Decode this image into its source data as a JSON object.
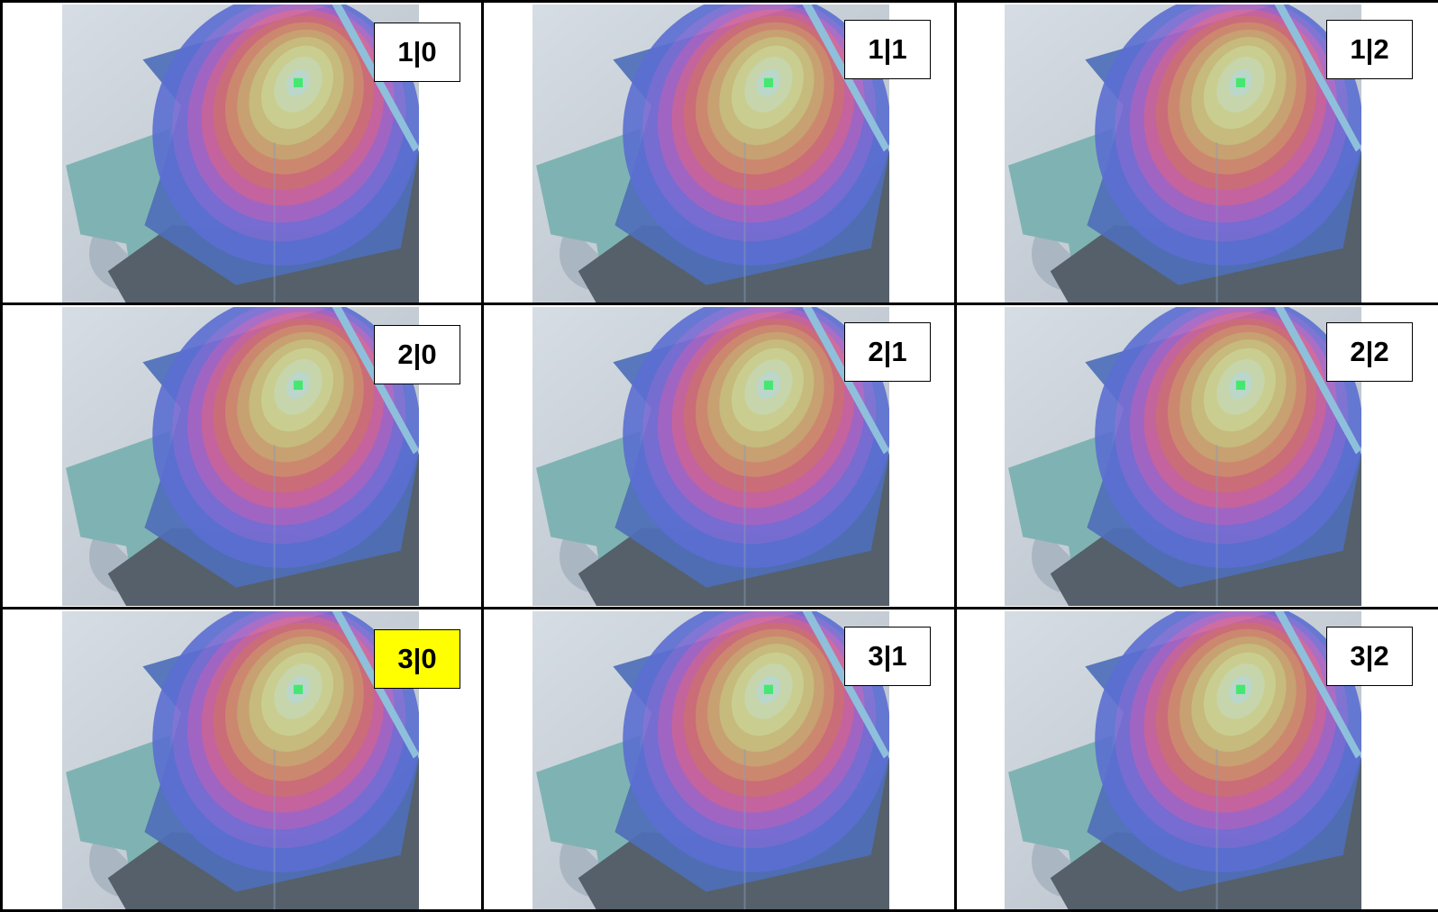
{
  "rows": [
    [
      {
        "label": "1|0",
        "highlighted": false
      },
      {
        "label": "1|1",
        "highlighted": false
      },
      {
        "label": "1|2",
        "highlighted": false
      }
    ],
    [
      {
        "label": "2|0",
        "highlighted": false
      },
      {
        "label": "2|1",
        "highlighted": false
      },
      {
        "label": "2|2",
        "highlighted": false
      }
    ],
    [
      {
        "label": "3|0",
        "highlighted": true
      },
      {
        "label": "3|1",
        "highlighted": false
      },
      {
        "label": "3|2",
        "highlighted": false
      }
    ]
  ]
}
